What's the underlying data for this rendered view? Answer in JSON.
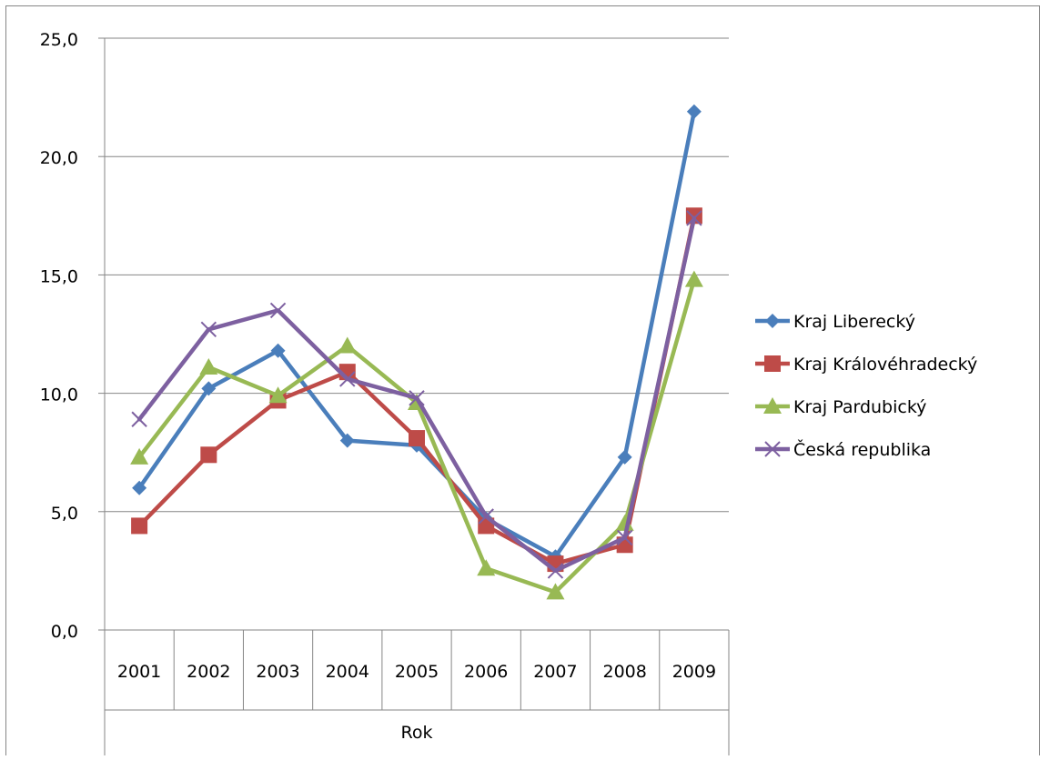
{
  "chart_data": {
    "type": "line",
    "title": "",
    "xlabel": "Rok",
    "ylabel": "",
    "categories": [
      "2001",
      "2002",
      "2003",
      "2004",
      "2005",
      "2006",
      "2007",
      "2008",
      "2009"
    ],
    "ylim": [
      0,
      25
    ],
    "yticks": [
      "0,0",
      "5,0",
      "10,0",
      "15,0",
      "20,0",
      "25,0"
    ],
    "grid": "horizontal",
    "legend_position": "right",
    "series": [
      {
        "name": "Kraj Liberecký",
        "color": "#4a7ebb",
        "marker": "diamond",
        "values": [
          6.0,
          10.2,
          11.8,
          8.0,
          7.8,
          4.7,
          3.1,
          7.3,
          21.9
        ]
      },
      {
        "name": "Kraj Královéhradecký",
        "color": "#be4b48",
        "marker": "square",
        "values": [
          4.4,
          7.4,
          9.7,
          10.9,
          8.1,
          4.4,
          2.8,
          3.6,
          17.5
        ]
      },
      {
        "name": "Kraj Pardubický",
        "color": "#98b954",
        "marker": "triangle",
        "values": [
          7.3,
          11.1,
          9.9,
          12.0,
          9.6,
          2.6,
          1.6,
          4.5,
          14.8
        ]
      },
      {
        "name": "Česká republika",
        "color": "#7d60a0",
        "marker": "x",
        "values": [
          8.9,
          12.7,
          13.5,
          10.6,
          9.8,
          4.8,
          2.5,
          3.9,
          17.4
        ]
      }
    ]
  }
}
